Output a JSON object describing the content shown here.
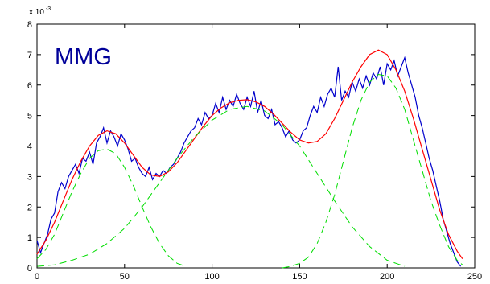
{
  "chart_data": {
    "type": "line",
    "title": "MMG",
    "title_color": "#000099",
    "xlabel": "",
    "ylabel": "",
    "xlim": [
      0,
      250
    ],
    "ylim": [
      0,
      8
    ],
    "x_ticks": [
      0,
      50,
      100,
      150,
      200,
      250
    ],
    "y_ticks": [
      0,
      1,
      2,
      3,
      4,
      5,
      6,
      7,
      8
    ],
    "y_multiplier_label": "x 10",
    "y_multiplier_exponent": "-3",
    "grid": false,
    "series": [
      {
        "style": "noisy-signal",
        "color": "#0000cc",
        "x": [
          0,
          2,
          4,
          6,
          8,
          10,
          12,
          14,
          16,
          18,
          20,
          22,
          24,
          26,
          28,
          30,
          32,
          34,
          36,
          38,
          40,
          42,
          44,
          46,
          48,
          50,
          52,
          54,
          56,
          58,
          60,
          62,
          64,
          66,
          68,
          70,
          72,
          74,
          76,
          78,
          80,
          82,
          84,
          86,
          88,
          90,
          92,
          94,
          96,
          98,
          100,
          102,
          104,
          106,
          108,
          110,
          112,
          114,
          116,
          118,
          120,
          122,
          124,
          126,
          128,
          130,
          132,
          134,
          136,
          138,
          140,
          142,
          144,
          146,
          148,
          150,
          152,
          154,
          156,
          158,
          160,
          162,
          164,
          166,
          168,
          170,
          172,
          174,
          176,
          178,
          180,
          182,
          184,
          186,
          188,
          190,
          192,
          194,
          196,
          198,
          200,
          202,
          204,
          206,
          208,
          210,
          212,
          214,
          216,
          218,
          220,
          222,
          224,
          226,
          228,
          230,
          232,
          234,
          236,
          238,
          240,
          242
        ],
        "y": [
          0.9,
          0.5,
          0.8,
          1.1,
          1.6,
          1.8,
          2.5,
          2.8,
          2.6,
          3.0,
          3.2,
          3.4,
          3.1,
          3.6,
          3.5,
          3.8,
          3.4,
          4.1,
          4.3,
          4.6,
          4.1,
          4.5,
          4.3,
          4.0,
          4.4,
          4.2,
          3.9,
          3.5,
          3.6,
          3.3,
          3.1,
          3.0,
          3.3,
          2.9,
          3.1,
          3.0,
          3.2,
          3.1,
          3.3,
          3.4,
          3.6,
          3.8,
          4.1,
          4.3,
          4.5,
          4.6,
          4.9,
          4.7,
          5.1,
          4.9,
          5.0,
          5.4,
          5.1,
          5.6,
          5.2,
          5.5,
          5.3,
          5.7,
          5.4,
          5.2,
          5.6,
          5.3,
          5.8,
          5.1,
          5.5,
          5.0,
          4.9,
          5.2,
          4.7,
          4.8,
          4.6,
          4.3,
          4.5,
          4.2,
          4.1,
          4.2,
          4.5,
          4.6,
          5.0,
          5.3,
          5.1,
          5.6,
          5.3,
          5.7,
          5.9,
          5.6,
          6.6,
          5.5,
          5.8,
          5.6,
          6.1,
          5.8,
          6.2,
          5.9,
          6.3,
          6.0,
          6.4,
          6.2,
          6.6,
          6.0,
          6.7,
          6.5,
          6.8,
          6.3,
          6.6,
          6.9,
          6.4,
          6.0,
          5.6,
          5.0,
          4.6,
          4.1,
          3.6,
          3.2,
          2.7,
          2.2,
          1.6,
          1.2,
          0.8,
          0.5,
          0.2,
          0.05
        ]
      },
      {
        "style": "fitted-sum",
        "color": "#ff0000",
        "x": [
          0,
          5,
          10,
          15,
          20,
          25,
          30,
          35,
          40,
          45,
          50,
          55,
          60,
          65,
          70,
          75,
          80,
          85,
          90,
          95,
          100,
          105,
          110,
          115,
          120,
          125,
          130,
          135,
          140,
          145,
          150,
          155,
          160,
          165,
          170,
          175,
          180,
          185,
          190,
          195,
          200,
          205,
          210,
          215,
          220,
          225,
          230,
          235,
          240,
          243
        ],
        "y": [
          0.45,
          0.9,
          1.5,
          2.2,
          2.9,
          3.5,
          4.0,
          4.35,
          4.5,
          4.4,
          4.1,
          3.7,
          3.3,
          3.05,
          3.0,
          3.15,
          3.45,
          3.85,
          4.25,
          4.65,
          5.0,
          5.25,
          5.42,
          5.5,
          5.52,
          5.45,
          5.3,
          5.05,
          4.75,
          4.45,
          4.2,
          4.1,
          4.15,
          4.4,
          4.9,
          5.5,
          6.1,
          6.6,
          7.0,
          7.15,
          7.0,
          6.5,
          5.8,
          4.9,
          3.9,
          2.9,
          1.9,
          1.1,
          0.55,
          0.3
        ]
      },
      {
        "style": "component",
        "color": "#00dd00",
        "x": [
          0,
          5,
          10,
          15,
          20,
          25,
          30,
          35,
          40,
          45,
          50,
          55,
          60,
          65,
          70,
          75,
          80,
          85
        ],
        "y": [
          0.3,
          0.6,
          1.1,
          1.8,
          2.5,
          3.1,
          3.6,
          3.85,
          3.9,
          3.75,
          3.3,
          2.7,
          2.0,
          1.35,
          0.8,
          0.4,
          0.15,
          0.05
        ]
      },
      {
        "style": "component",
        "color": "#00dd00",
        "x": [
          0,
          10,
          20,
          30,
          40,
          50,
          60,
          70,
          80,
          90,
          100,
          110,
          120,
          130,
          140,
          150,
          160,
          170,
          180,
          190,
          200,
          210
        ],
        "y": [
          0.05,
          0.1,
          0.25,
          0.45,
          0.8,
          1.3,
          2.0,
          2.8,
          3.6,
          4.3,
          4.85,
          5.2,
          5.3,
          5.15,
          4.7,
          4.0,
          3.1,
          2.2,
          1.35,
          0.7,
          0.25,
          0.05
        ]
      },
      {
        "style": "component",
        "color": "#00dd00",
        "x": [
          140,
          145,
          150,
          155,
          160,
          165,
          170,
          175,
          180,
          185,
          190,
          195,
          200,
          205,
          210,
          215,
          220,
          225,
          230,
          235,
          240,
          243
        ],
        "y": [
          0.0,
          0.05,
          0.15,
          0.35,
          0.8,
          1.5,
          2.4,
          3.5,
          4.6,
          5.5,
          6.1,
          6.35,
          6.3,
          5.9,
          5.2,
          4.2,
          3.2,
          2.2,
          1.4,
          0.7,
          0.25,
          0.1
        ]
      }
    ]
  }
}
